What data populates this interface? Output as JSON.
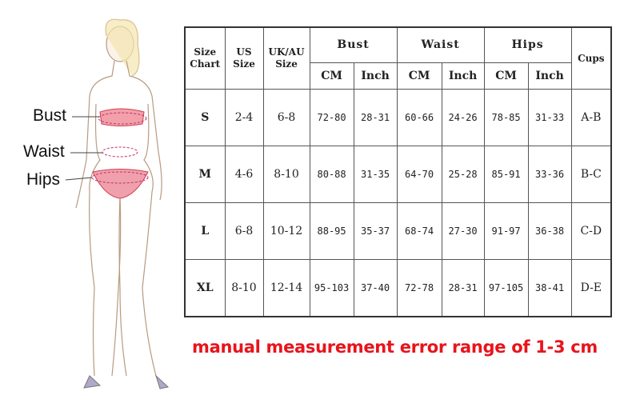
{
  "figure": {
    "labels": {
      "bust": "Bust",
      "waist": "Waist",
      "hips": "Hips"
    },
    "accent_color": "#e05a6a"
  },
  "table": {
    "header": {
      "size_chart": "Size Chart",
      "us_size": "US Size",
      "uk_au_size": "UK/AU Size",
      "bust": "Bust",
      "waist": "Waist",
      "hips": "Hips",
      "cups": "Cups",
      "cm": "CM",
      "inch": "Inch"
    },
    "rows": [
      {
        "size": "S",
        "us": "2-4",
        "uk": "6-8",
        "bust_cm": "72-80",
        "bust_in": "28-31",
        "waist_cm": "60-66",
        "waist_in": "24-26",
        "hips_cm": "78-85",
        "hips_in": "31-33",
        "cups": "A-B"
      },
      {
        "size": "M",
        "us": "4-6",
        "uk": "8-10",
        "bust_cm": "80-88",
        "bust_in": "31-35",
        "waist_cm": "64-70",
        "waist_in": "25-28",
        "hips_cm": "85-91",
        "hips_in": "33-36",
        "cups": "B-C"
      },
      {
        "size": "L",
        "us": "6-8",
        "uk": "10-12",
        "bust_cm": "88-95",
        "bust_in": "35-37",
        "waist_cm": "68-74",
        "waist_in": "27-30",
        "hips_cm": "91-97",
        "hips_in": "36-38",
        "cups": "C-D"
      },
      {
        "size": "XL",
        "us": "8-10",
        "uk": "12-14",
        "bust_cm": "95-103",
        "bust_in": "37-40",
        "waist_cm": "72-78",
        "waist_in": "28-31",
        "hips_cm": "97-105",
        "hips_in": "38-41",
        "cups": "D-E"
      }
    ]
  },
  "note": {
    "text": "manual measurement error range of 1-3 cm",
    "color": "#e8141b"
  }
}
